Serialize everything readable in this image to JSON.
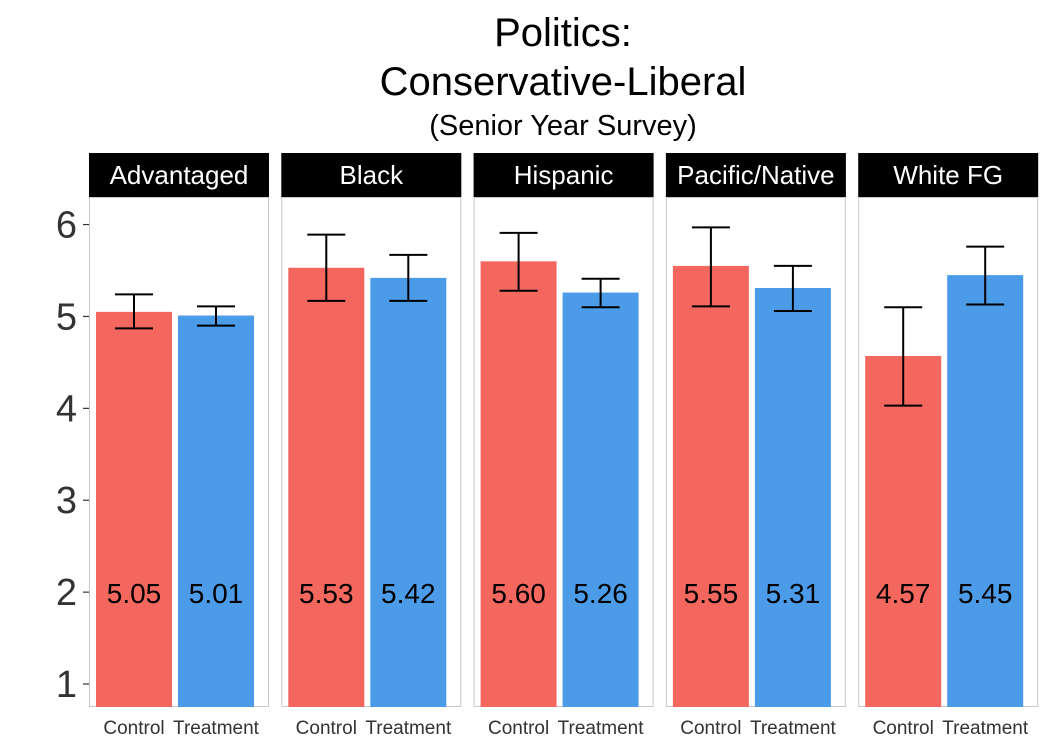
{
  "chart_data": {
    "type": "bar",
    "title": "Politics:",
    "title_line2": "Conservative-Liberal",
    "subtitle": "(Senior Year Survey)",
    "xlabel": "",
    "ylabel": "",
    "ylim": [
      0.75,
      6.3
    ],
    "yticks": [
      1,
      2,
      3,
      4,
      5,
      6
    ],
    "grid": false,
    "categories": [
      "Control",
      "Treatment"
    ],
    "colors": {
      "Control": "#F4675F",
      "Treatment": "#4C9BE8",
      "strip": "#000000",
      "panel_border": "#c8c8c8"
    },
    "panels": [
      {
        "label": "Advantaged",
        "values": [
          5.05,
          5.01
        ],
        "value_labels": [
          "5.05",
          "5.01"
        ],
        "error_low": [
          4.87,
          4.9
        ],
        "error_high": [
          5.24,
          5.11
        ]
      },
      {
        "label": "Black",
        "values": [
          5.53,
          5.42
        ],
        "value_labels": [
          "5.53",
          "5.42"
        ],
        "error_low": [
          5.17,
          5.17
        ],
        "error_high": [
          5.89,
          5.67
        ]
      },
      {
        "label": "Hispanic",
        "values": [
          5.6,
          5.26
        ],
        "value_labels": [
          "5.60",
          "5.26"
        ],
        "error_low": [
          5.28,
          5.1
        ],
        "error_high": [
          5.91,
          5.41
        ]
      },
      {
        "label": "Pacific/Native",
        "values": [
          5.55,
          5.31
        ],
        "value_labels": [
          "5.55",
          "5.31"
        ],
        "error_low": [
          5.11,
          5.06
        ],
        "error_high": [
          5.97,
          5.55
        ]
      },
      {
        "label": "White FG",
        "values": [
          4.57,
          5.45
        ],
        "value_labels": [
          "4.57",
          "5.45"
        ],
        "error_low": [
          4.03,
          5.13
        ],
        "error_high": [
          5.1,
          5.76
        ]
      }
    ]
  }
}
